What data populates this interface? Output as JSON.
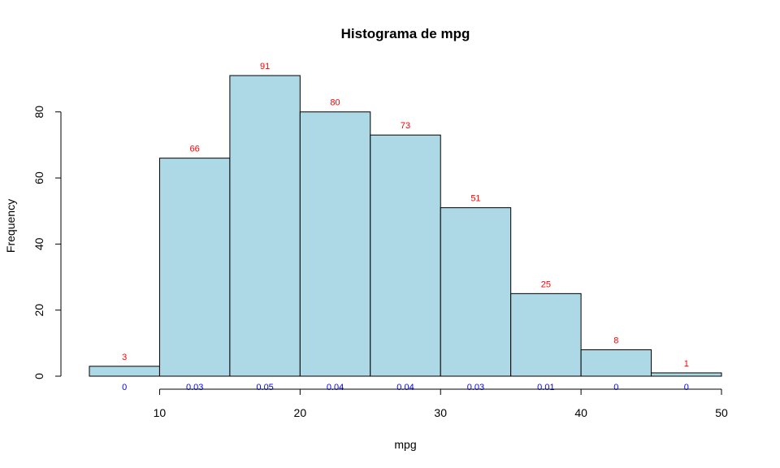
{
  "chart_data": {
    "type": "bar",
    "subtype": "histogram",
    "title": "Histograma de mpg",
    "xlabel": "mpg",
    "ylabel": "Frequency",
    "bins": [
      {
        "start": 5,
        "end": 10,
        "count": 3,
        "density_label": "0"
      },
      {
        "start": 10,
        "end": 15,
        "count": 66,
        "density_label": "0.03"
      },
      {
        "start": 15,
        "end": 20,
        "count": 91,
        "density_label": "0.05"
      },
      {
        "start": 20,
        "end": 25,
        "count": 80,
        "density_label": "0.04"
      },
      {
        "start": 25,
        "end": 30,
        "count": 73,
        "density_label": "0.04"
      },
      {
        "start": 30,
        "end": 35,
        "count": 51,
        "density_label": "0.03"
      },
      {
        "start": 35,
        "end": 40,
        "count": 25,
        "density_label": "0.01"
      },
      {
        "start": 40,
        "end": 45,
        "count": 8,
        "density_label": "0"
      },
      {
        "start": 45,
        "end": 50,
        "count": 1,
        "density_label": "0"
      }
    ],
    "xticks": [
      10,
      20,
      30,
      40,
      50
    ],
    "yticks": [
      0,
      20,
      40,
      60,
      80
    ],
    "xlim": [
      5,
      50
    ],
    "ylim": [
      0,
      91
    ],
    "grid": false,
    "legend": "none",
    "colors": {
      "bar_fill": "#add8e6",
      "count_label": "#ff0000",
      "density_label": "#0000ff"
    }
  }
}
